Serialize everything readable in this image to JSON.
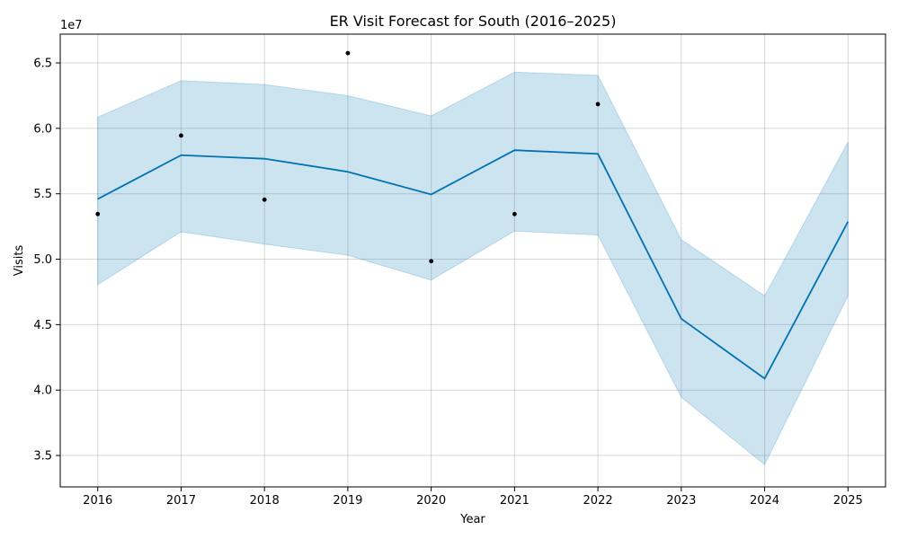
{
  "chart_data": {
    "type": "line",
    "title": "ER Visit Forecast for South (2016–2025)",
    "xlabel": "Year",
    "ylabel": "Visits",
    "y_offset_label": "1e7",
    "x": [
      2016,
      2017,
      2018,
      2019,
      2020,
      2021,
      2022,
      2023,
      2024,
      2025
    ],
    "x_tick_labels": [
      "2016",
      "2017",
      "2018",
      "2019",
      "2020",
      "2021",
      "2022",
      "2023",
      "2024",
      "2025"
    ],
    "y_ticks": [
      3.5,
      4.0,
      4.5,
      5.0,
      5.5,
      6.0,
      6.5
    ],
    "y_tick_labels": [
      "3.5",
      "4.0",
      "4.5",
      "5.0",
      "5.5",
      "6.0",
      "6.5"
    ],
    "xlim": [
      2015.55,
      2025.45
    ],
    "ylim": [
      32600000,
      67200000
    ],
    "grid": true,
    "series": [
      {
        "kind": "forecast",
        "values": [
          54600000,
          57950000,
          57680000,
          56680000,
          54950000,
          58330000,
          58050000,
          45450000,
          40880000,
          52870000
        ],
        "color": "#0072B2"
      },
      {
        "kind": "interval",
        "upper": [
          60850000,
          63650000,
          63350000,
          62500000,
          60950000,
          64300000,
          64050000,
          51500000,
          47200000,
          58950000
        ],
        "lower": [
          48050000,
          52100000,
          51150000,
          50300000,
          48400000,
          52150000,
          51850000,
          39450000,
          34300000,
          47200000
        ],
        "color": "#0072B2"
      },
      {
        "kind": "actual",
        "x": [
          2016,
          2017,
          2018,
          2019,
          2020,
          2021,
          2022
        ],
        "values": [
          53450000,
          59450000,
          54550000,
          65750000,
          49850000,
          53450000,
          61850000
        ],
        "color": "#000000"
      }
    ]
  }
}
